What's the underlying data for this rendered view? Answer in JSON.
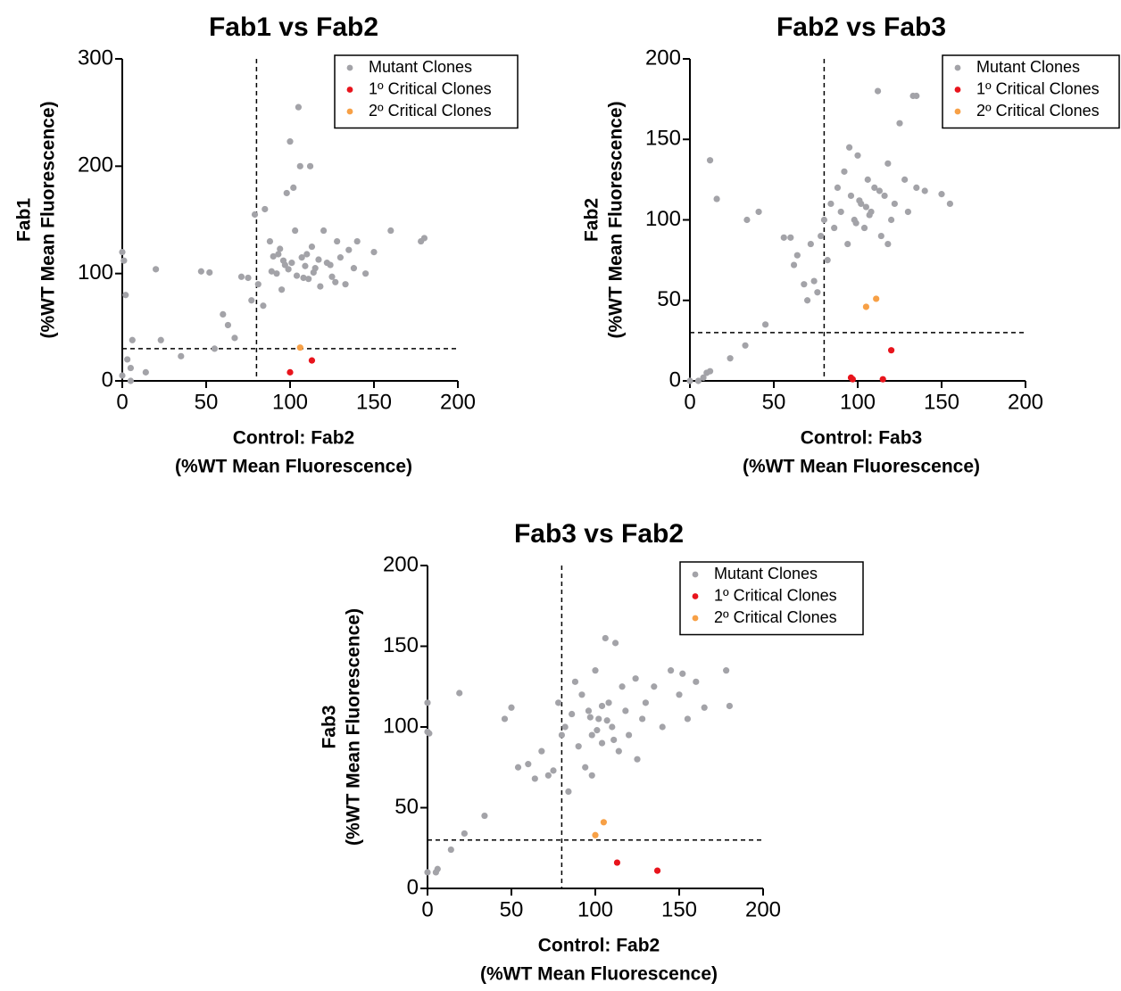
{
  "chart_data": [
    {
      "type": "scatter",
      "title": "Fab1 vs Fab2",
      "x_label": [
        "Control: Fab2",
        "(%WT  Mean Fluorescence)"
      ],
      "y_label": [
        "Fab1",
        "(%WT Mean Fluorescence)"
      ],
      "xlim": [
        0,
        200
      ],
      "ylim": [
        0,
        300
      ],
      "xticks": [
        0,
        50,
        100,
        150,
        200
      ],
      "yticks": [
        0,
        100,
        200,
        300
      ],
      "threshold_x": 80,
      "threshold_y": 30,
      "legend": "upper right",
      "series": [
        {
          "name": "Mutant Clones",
          "color": "#a3a3a8",
          "x": [
            0,
            1,
            2,
            0,
            5,
            6,
            14,
            20,
            23,
            35,
            47,
            52,
            55,
            60,
            63,
            67,
            71,
            75,
            77,
            79,
            81,
            84,
            88,
            90,
            92,
            94,
            95,
            97,
            100,
            101,
            103,
            105,
            106,
            108,
            110,
            112,
            113,
            115,
            118,
            120,
            122,
            125,
            128,
            130,
            133,
            135,
            138,
            140,
            145,
            150,
            160,
            178,
            180,
            5,
            3,
            85,
            98,
            102,
            96,
            104,
            99,
            107,
            111,
            93,
            109,
            114,
            117,
            89,
            124,
            127
          ],
          "values": [
            120,
            112,
            80,
            5,
            12,
            38,
            8,
            104,
            38,
            23,
            102,
            101,
            30,
            62,
            52,
            40,
            97,
            96,
            75,
            155,
            90,
            70,
            130,
            116,
            100,
            123,
            85,
            108,
            223,
            110,
            140,
            255,
            200,
            96,
            118,
            200,
            125,
            105,
            88,
            140,
            110,
            97,
            130,
            115,
            90,
            122,
            105,
            130,
            100,
            120,
            140,
            130,
            133,
            0,
            20,
            160,
            175,
            180,
            112,
            98,
            104,
            115,
            95,
            118,
            107,
            101,
            113,
            102,
            108,
            92
          ]
        },
        {
          "name": "1º Critical Clones",
          "color": "#e8141c",
          "x": [
            100,
            113
          ],
          "values": [
            8,
            19
          ]
        },
        {
          "name": "2º Critical Clones",
          "color": "#f7a046",
          "x": [
            106
          ],
          "values": [
            31
          ]
        }
      ]
    },
    {
      "type": "scatter",
      "title": "Fab2 vs Fab3",
      "x_label": [
        "Control: Fab3",
        "(%WT  Mean Fluorescence)"
      ],
      "y_label": [
        "Fab2",
        "(%WT Mean Fluorescence)"
      ],
      "xlim": [
        0,
        200
      ],
      "ylim": [
        0,
        200
      ],
      "xticks": [
        0,
        50,
        100,
        150,
        200
      ],
      "yticks": [
        0,
        50,
        100,
        150,
        200
      ],
      "threshold_x": 80,
      "threshold_y": 30,
      "legend": "upper right",
      "series": [
        {
          "name": "Mutant Clones",
          "color": "#a3a3a8",
          "x": [
            0,
            5,
            8,
            10,
            12,
            12,
            16,
            24,
            33,
            34,
            41,
            45,
            56,
            60,
            62,
            64,
            68,
            70,
            72,
            74,
            76,
            78,
            80,
            82,
            84,
            86,
            88,
            90,
            92,
            94,
            96,
            98,
            100,
            102,
            104,
            106,
            108,
            110,
            112,
            114,
            116,
            118,
            120,
            122,
            125,
            128,
            130,
            133,
            135,
            135,
            150,
            155,
            140,
            118,
            95,
            101,
            107,
            113,
            99,
            105
          ],
          "values": [
            0,
            0,
            2,
            5,
            6,
            137,
            113,
            14,
            22,
            100,
            105,
            35,
            89,
            89,
            72,
            78,
            60,
            50,
            85,
            62,
            55,
            90,
            100,
            75,
            110,
            95,
            120,
            105,
            130,
            85,
            115,
            100,
            140,
            110,
            95,
            125,
            105,
            120,
            180,
            90,
            115,
            135,
            100,
            110,
            160,
            125,
            105,
            177,
            177,
            120,
            116,
            110,
            118,
            85,
            145,
            112,
            103,
            118,
            98,
            108
          ]
        },
        {
          "name": "1º Critical Clones",
          "color": "#e8141c",
          "x": [
            96,
            97,
            115,
            120
          ],
          "values": [
            2,
            1,
            1,
            19
          ]
        },
        {
          "name": "2º Critical Clones",
          "color": "#f7a046",
          "x": [
            105,
            111
          ],
          "values": [
            46,
            51
          ]
        }
      ]
    },
    {
      "type": "scatter",
      "title": "Fab3 vs Fab2",
      "x_label": [
        "Control: Fab2",
        "(%WT  Mean Fluorescence)"
      ],
      "y_label": [
        "Fab3",
        "(%WT Mean Fluorescence)"
      ],
      "xlim": [
        0,
        200
      ],
      "ylim": [
        0,
        200
      ],
      "xticks": [
        0,
        50,
        100,
        150,
        200
      ],
      "yticks": [
        0,
        50,
        100,
        150,
        200
      ],
      "threshold_x": 80,
      "threshold_y": 30,
      "legend": "upper right",
      "series": [
        {
          "name": "Mutant Clones",
          "color": "#a3a3a8",
          "x": [
            0,
            0,
            1,
            0,
            5,
            6,
            14,
            19,
            22,
            34,
            46,
            50,
            54,
            60,
            64,
            68,
            72,
            75,
            78,
            80,
            82,
            84,
            86,
            88,
            90,
            92,
            94,
            96,
            98,
            100,
            102,
            104,
            106,
            108,
            110,
            112,
            114,
            116,
            118,
            120,
            124,
            128,
            130,
            135,
            140,
            145,
            150,
            152,
            155,
            160,
            165,
            178,
            180,
            125,
            98,
            101,
            107,
            111,
            97,
            104
          ],
          "values": [
            115,
            97,
            96,
            10,
            10,
            12,
            24,
            121,
            34,
            45,
            105,
            112,
            75,
            77,
            68,
            85,
            70,
            73,
            115,
            95,
            100,
            60,
            108,
            128,
            88,
            120,
            75,
            110,
            95,
            135,
            105,
            90,
            155,
            115,
            100,
            152,
            85,
            125,
            110,
            95,
            130,
            105,
            115,
            125,
            100,
            135,
            120,
            133,
            105,
            128,
            112,
            135,
            113,
            80,
            70,
            98,
            104,
            92,
            106,
            113
          ]
        },
        {
          "name": "1º Critical Clones",
          "color": "#e8141c",
          "x": [
            113,
            137
          ],
          "values": [
            16,
            11
          ]
        },
        {
          "name": "2º Critical Clones",
          "color": "#f7a046",
          "x": [
            100,
            105
          ],
          "values": [
            33,
            41
          ]
        }
      ]
    }
  ]
}
